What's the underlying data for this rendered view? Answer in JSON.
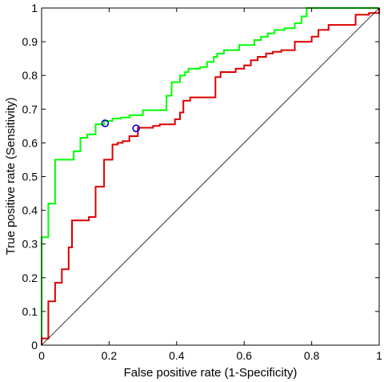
{
  "chart_data": {
    "type": "line",
    "xlabel": "False positive rate (1-Specificity)",
    "ylabel": "True positive rate (Sensitivity)",
    "xlim": [
      0,
      1
    ],
    "ylim": [
      0,
      1
    ],
    "x_ticks": [
      "0",
      "0.2",
      "0.4",
      "0.6",
      "0.8",
      "1"
    ],
    "y_ticks": [
      "0",
      "0.1",
      "0.2",
      "0.3",
      "0.4",
      "0.5",
      "0.6",
      "0.7",
      "0.8",
      "0.9",
      "1"
    ],
    "grid": false,
    "legend": "none",
    "series": [
      {
        "color": "#00ff00",
        "step": true,
        "points": [
          [
            0,
            0
          ],
          [
            0,
            0.32
          ],
          [
            0.02,
            0.32
          ],
          [
            0.02,
            0.42
          ],
          [
            0.04,
            0.42
          ],
          [
            0.04,
            0.55
          ],
          [
            0.095,
            0.55
          ],
          [
            0.095,
            0.575
          ],
          [
            0.115,
            0.575
          ],
          [
            0.115,
            0.615
          ],
          [
            0.135,
            0.615
          ],
          [
            0.135,
            0.625
          ],
          [
            0.16,
            0.625
          ],
          [
            0.16,
            0.655
          ],
          [
            0.185,
            0.655
          ],
          [
            0.185,
            0.665
          ],
          [
            0.21,
            0.665
          ],
          [
            0.21,
            0.672
          ],
          [
            0.235,
            0.672
          ],
          [
            0.235,
            0.675
          ],
          [
            0.26,
            0.675
          ],
          [
            0.26,
            0.682
          ],
          [
            0.3,
            0.682
          ],
          [
            0.3,
            0.697
          ],
          [
            0.37,
            0.697
          ],
          [
            0.37,
            0.74
          ],
          [
            0.385,
            0.74
          ],
          [
            0.385,
            0.78
          ],
          [
            0.41,
            0.78
          ],
          [
            0.41,
            0.8
          ],
          [
            0.425,
            0.8
          ],
          [
            0.425,
            0.81
          ],
          [
            0.435,
            0.81
          ],
          [
            0.435,
            0.82
          ],
          [
            0.47,
            0.82
          ],
          [
            0.47,
            0.825
          ],
          [
            0.49,
            0.825
          ],
          [
            0.49,
            0.84
          ],
          [
            0.51,
            0.84
          ],
          [
            0.51,
            0.855
          ],
          [
            0.52,
            0.855
          ],
          [
            0.52,
            0.865
          ],
          [
            0.54,
            0.865
          ],
          [
            0.54,
            0.875
          ],
          [
            0.585,
            0.875
          ],
          [
            0.585,
            0.89
          ],
          [
            0.63,
            0.89
          ],
          [
            0.63,
            0.905
          ],
          [
            0.65,
            0.905
          ],
          [
            0.65,
            0.915
          ],
          [
            0.67,
            0.915
          ],
          [
            0.67,
            0.925
          ],
          [
            0.69,
            0.925
          ],
          [
            0.69,
            0.935
          ],
          [
            0.72,
            0.935
          ],
          [
            0.72,
            0.94
          ],
          [
            0.75,
            0.94
          ],
          [
            0.75,
            0.955
          ],
          [
            0.77,
            0.955
          ],
          [
            0.77,
            0.975
          ],
          [
            0.785,
            0.975
          ],
          [
            0.785,
            1
          ],
          [
            1,
            1
          ]
        ]
      },
      {
        "color": "#dd0000",
        "step": true,
        "points": [
          [
            0,
            0
          ],
          [
            0,
            0.02
          ],
          [
            0.02,
            0.02
          ],
          [
            0.02,
            0.13
          ],
          [
            0.04,
            0.13
          ],
          [
            0.04,
            0.185
          ],
          [
            0.06,
            0.185
          ],
          [
            0.06,
            0.225
          ],
          [
            0.08,
            0.225
          ],
          [
            0.08,
            0.29
          ],
          [
            0.09,
            0.29
          ],
          [
            0.09,
            0.37
          ],
          [
            0.14,
            0.37
          ],
          [
            0.14,
            0.38
          ],
          [
            0.16,
            0.38
          ],
          [
            0.16,
            0.47
          ],
          [
            0.185,
            0.47
          ],
          [
            0.185,
            0.55
          ],
          [
            0.21,
            0.55
          ],
          [
            0.21,
            0.595
          ],
          [
            0.225,
            0.595
          ],
          [
            0.225,
            0.6
          ],
          [
            0.24,
            0.6
          ],
          [
            0.24,
            0.605
          ],
          [
            0.26,
            0.605
          ],
          [
            0.26,
            0.62
          ],
          [
            0.285,
            0.62
          ],
          [
            0.285,
            0.645
          ],
          [
            0.33,
            0.645
          ],
          [
            0.33,
            0.65
          ],
          [
            0.35,
            0.65
          ],
          [
            0.35,
            0.655
          ],
          [
            0.395,
            0.655
          ],
          [
            0.395,
            0.67
          ],
          [
            0.41,
            0.67
          ],
          [
            0.41,
            0.69
          ],
          [
            0.42,
            0.69
          ],
          [
            0.42,
            0.725
          ],
          [
            0.44,
            0.725
          ],
          [
            0.44,
            0.735
          ],
          [
            0.515,
            0.735
          ],
          [
            0.515,
            0.795
          ],
          [
            0.53,
            0.795
          ],
          [
            0.53,
            0.81
          ],
          [
            0.575,
            0.81
          ],
          [
            0.575,
            0.82
          ],
          [
            0.6,
            0.82
          ],
          [
            0.6,
            0.83
          ],
          [
            0.62,
            0.83
          ],
          [
            0.62,
            0.845
          ],
          [
            0.64,
            0.845
          ],
          [
            0.64,
            0.855
          ],
          [
            0.665,
            0.855
          ],
          [
            0.665,
            0.865
          ],
          [
            0.685,
            0.865
          ],
          [
            0.685,
            0.87
          ],
          [
            0.71,
            0.87
          ],
          [
            0.71,
            0.875
          ],
          [
            0.75,
            0.875
          ],
          [
            0.75,
            0.9
          ],
          [
            0.8,
            0.9
          ],
          [
            0.8,
            0.915
          ],
          [
            0.82,
            0.915
          ],
          [
            0.82,
            0.935
          ],
          [
            0.85,
            0.935
          ],
          [
            0.85,
            0.95
          ],
          [
            0.93,
            0.95
          ],
          [
            0.93,
            0.98
          ],
          [
            0.97,
            0.98
          ],
          [
            0.97,
            0.985
          ],
          [
            1,
            0.985
          ],
          [
            1,
            1
          ]
        ]
      },
      {
        "color": "#000000",
        "step": false,
        "points": [
          [
            0,
            0
          ],
          [
            1,
            1
          ]
        ]
      }
    ],
    "markers": [
      {
        "x": 0.188,
        "y": 0.658,
        "color": "#0000cc"
      },
      {
        "x": 0.28,
        "y": 0.643,
        "color": "#0000cc"
      }
    ]
  }
}
